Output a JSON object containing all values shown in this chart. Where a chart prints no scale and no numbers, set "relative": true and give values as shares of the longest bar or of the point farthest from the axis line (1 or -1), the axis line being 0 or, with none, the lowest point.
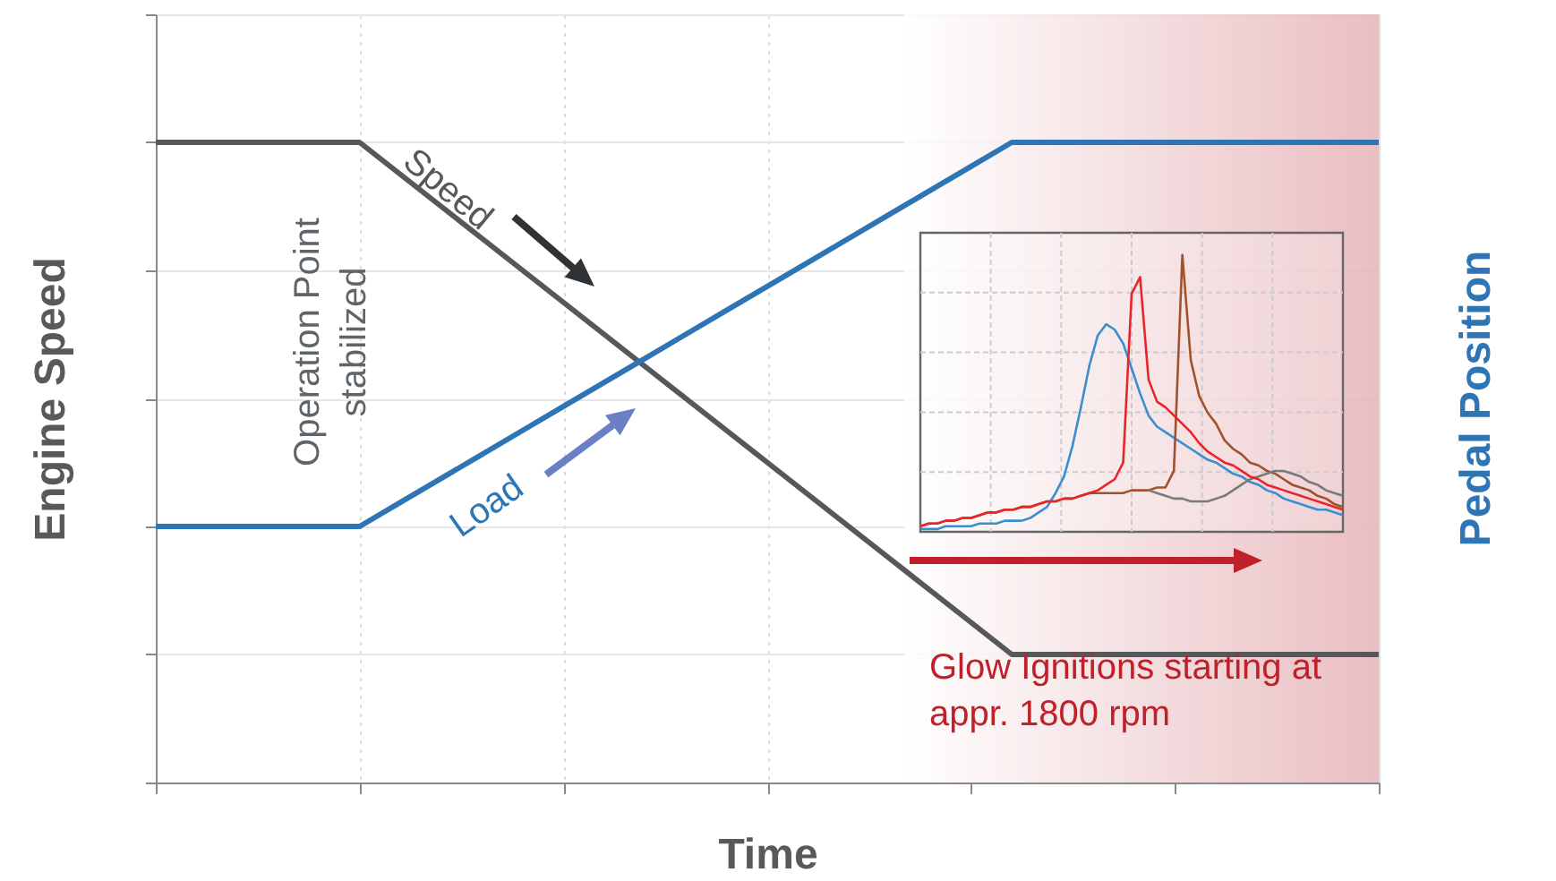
{
  "chart_data": [
    {
      "type": "line",
      "relative": true,
      "xlabel": "Time",
      "ylabel": "Engine Speed",
      "y2label": "Pedal Position",
      "grid": true,
      "categories": [
        null,
        null,
        null,
        null,
        null,
        null,
        null,
        null,
        null,
        null,
        null,
        null,
        null,
        null,
        null,
        null,
        null,
        null,
        null,
        null,
        null,
        null,
        null,
        null,
        null,
        null,
        null,
        null,
        null,
        null,
        null
      ],
      "series": [
        {
          "name": "Speed",
          "color": "#55595c",
          "values": [
            1,
            1,
            1,
            1,
            1,
            1,
            0.95,
            0.9,
            0.85,
            0.8,
            0.75,
            0.7,
            0.65,
            0.6,
            0.55,
            0.5,
            0.45,
            0.4,
            0.35,
            0.3,
            0.25,
            0.2,
            0.2,
            0.2,
            0.2,
            0.2,
            0.2,
            0.2,
            0.2,
            0.2,
            0.2
          ]
        },
        {
          "name": "Load",
          "color": "#2e75b6",
          "values": [
            0.4,
            0.4,
            0.4,
            0.4,
            0.4,
            0.4,
            0.4375,
            0.475,
            0.5125,
            0.55,
            0.5875,
            0.625,
            0.6625,
            0.7,
            0.7375,
            0.775,
            0.8125,
            0.85,
            0.8875,
            0.925,
            0.9625,
            1,
            1,
            1,
            1,
            1,
            1,
            1,
            1,
            1,
            1
          ]
        }
      ],
      "annotations": [
        "Operation Point\nstabilized",
        "Glow Ignitions starting at\nappr. 1800 rpm"
      ]
    },
    {
      "type": "line",
      "relative": true,
      "grid": true,
      "categories": [
        null,
        null,
        null,
        null,
        null,
        null,
        null,
        null,
        null,
        null,
        null,
        null,
        null,
        null,
        null,
        null,
        null,
        null,
        null,
        null,
        null,
        null,
        null,
        null,
        null,
        null,
        null,
        null,
        null,
        null,
        null,
        null,
        null,
        null,
        null,
        null,
        null,
        null,
        null,
        null,
        null,
        null,
        null,
        null,
        null,
        null,
        null,
        null,
        null,
        null,
        null
      ],
      "series": [
        {
          "color": "#3a8fd0",
          "values": [
            0.01,
            0.01,
            0.01,
            0.02,
            0.02,
            0.02,
            0.02,
            0.03,
            0.03,
            0.03,
            0.04,
            0.04,
            0.04,
            0.05,
            0.07,
            0.09,
            0.14,
            0.2,
            0.31,
            0.45,
            0.6,
            0.71,
            0.75,
            0.73,
            0.68,
            0.59,
            0.5,
            0.42,
            0.38,
            0.36,
            0.34,
            0.32,
            0.3,
            0.28,
            0.26,
            0.25,
            0.23,
            0.21,
            0.2,
            0.18,
            0.17,
            0.15,
            0.14,
            0.12,
            0.11,
            0.1,
            0.09,
            0.08,
            0.08,
            0.07,
            0.06
          ]
        },
        {
          "color": "#a0522d",
          "values": [
            0.02,
            0.03,
            0.03,
            0.04,
            0.04,
            0.05,
            0.05,
            0.06,
            0.07,
            0.07,
            0.08,
            0.08,
            0.09,
            0.09,
            0.1,
            0.11,
            0.11,
            0.12,
            0.12,
            0.13,
            0.14,
            0.14,
            0.14,
            0.14,
            0.14,
            0.15,
            0.15,
            0.15,
            0.16,
            0.16,
            0.22,
            1,
            0.62,
            0.49,
            0.43,
            0.39,
            0.33,
            0.3,
            0.28,
            0.25,
            0.24,
            0.22,
            0.21,
            0.19,
            0.17,
            0.16,
            0.15,
            0.13,
            0.12,
            0.1,
            0.09
          ]
        },
        {
          "color": "#7a7a7a",
          "values": [
            null,
            null,
            null,
            null,
            null,
            null,
            null,
            null,
            null,
            null,
            null,
            null,
            null,
            null,
            null,
            null,
            null,
            null,
            null,
            null,
            null,
            null,
            null,
            null,
            null,
            null,
            null,
            0.15,
            0.14,
            0.13,
            0.12,
            0.12,
            0.11,
            0.11,
            0.11,
            0.12,
            0.13,
            0.15,
            0.17,
            0.19,
            0.2,
            0.21,
            0.22,
            0.22,
            0.21,
            0.2,
            0.18,
            0.17,
            0.15,
            0.14,
            0.13
          ]
        },
        {
          "color": "#e8262a",
          "values": [
            0.02,
            0.03,
            0.03,
            0.04,
            0.04,
            0.05,
            0.05,
            0.06,
            0.07,
            0.07,
            0.08,
            0.08,
            0.09,
            0.09,
            0.1,
            0.11,
            0.11,
            0.12,
            0.12,
            0.13,
            0.14,
            0.15,
            0.17,
            0.19,
            0.25,
            0.86,
            0.92,
            0.55,
            0.47,
            0.45,
            0.42,
            0.39,
            0.36,
            0.32,
            0.29,
            0.27,
            0.25,
            0.24,
            0.22,
            0.2,
            0.19,
            0.17,
            0.16,
            0.15,
            0.14,
            0.13,
            0.12,
            0.11,
            0.1,
            0.09,
            0.08
          ]
        }
      ]
    }
  ]
}
